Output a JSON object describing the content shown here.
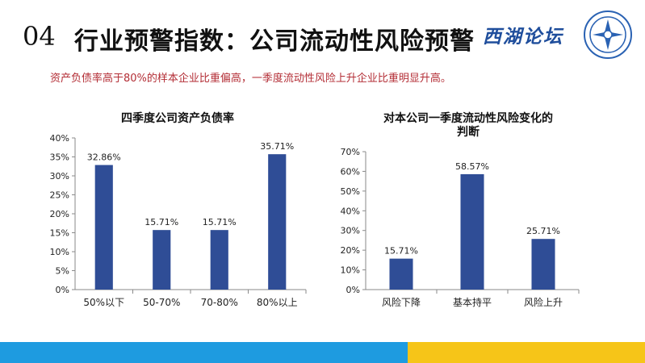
{
  "header": {
    "number": "04",
    "title": "行业预警指数：公司流动性风险预警",
    "brand": "西湖论坛"
  },
  "subtitle": "资产负债率高于80%的样本企业比重偏高，一季度流动性风险上升企业比重明显升高。",
  "colors": {
    "bar": "#2f4d96",
    "accent_red": "#b32d35",
    "footer_blue": "#1e9be0",
    "footer_gold": "#f6c518"
  },
  "chart_data": [
    {
      "type": "bar",
      "title": "四季度公司资产负债率",
      "categories": [
        "50%以下",
        "50-70%",
        "70-80%",
        "80%以上"
      ],
      "values": [
        32.86,
        15.71,
        15.71,
        35.71
      ],
      "value_labels": [
        "32.86%",
        "15.71%",
        "15.71%",
        "35.71%"
      ],
      "ylim": [
        0,
        40
      ],
      "yticks": [
        "0%",
        "5%",
        "10%",
        "15%",
        "20%",
        "25%",
        "30%",
        "35%",
        "40%"
      ],
      "grid": false,
      "legend": "none"
    },
    {
      "type": "bar",
      "title": [
        "对本公司一季度流动性风险变化的",
        "判断"
      ],
      "categories": [
        "风险下降",
        "基本持平",
        "风险上升"
      ],
      "values": [
        15.71,
        58.57,
        25.71
      ],
      "value_labels": [
        "15.71%",
        "58.57%",
        "25.71%"
      ],
      "ylim": [
        0,
        70
      ],
      "yticks": [
        "0%",
        "10%",
        "20%",
        "30%",
        "40%",
        "50%",
        "60%",
        "70%"
      ],
      "grid": false,
      "legend": "none"
    }
  ]
}
